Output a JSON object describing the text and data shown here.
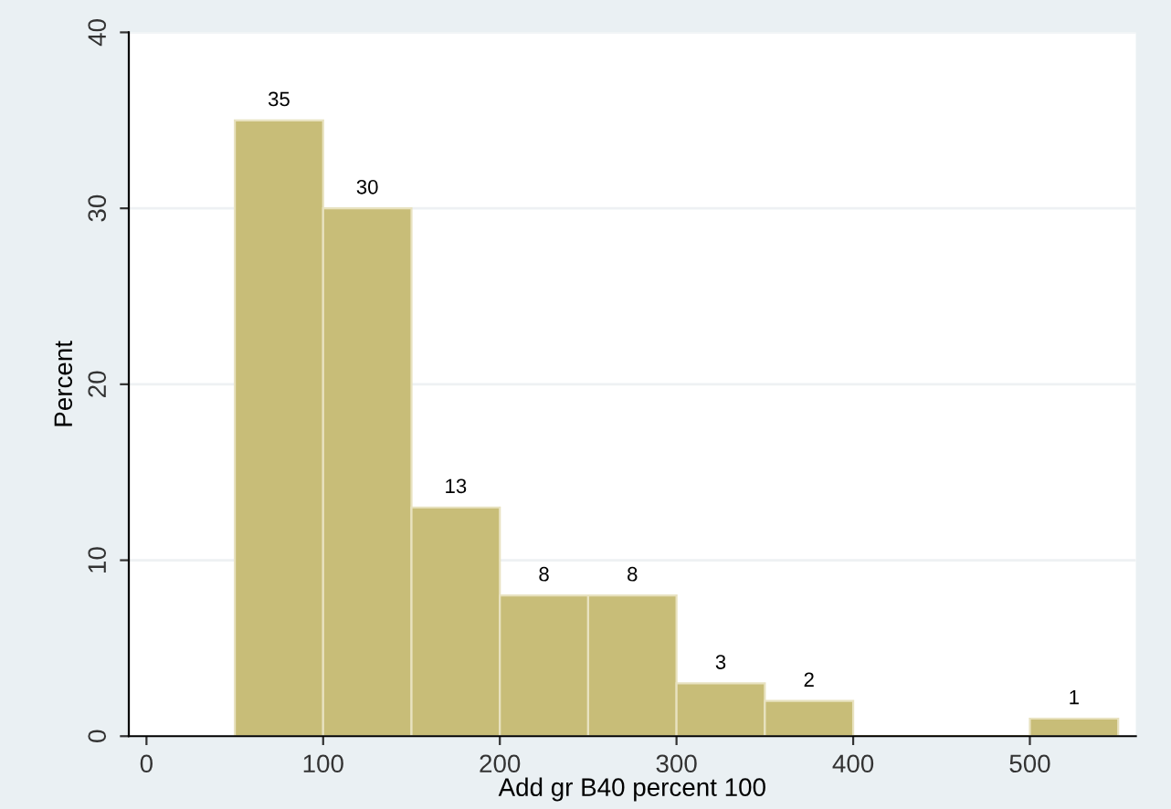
{
  "chart_data": {
    "type": "histogram",
    "xlabel": "Add gr B40 percent 100",
    "ylabel": "Percent",
    "bins": [
      50,
      100,
      150,
      200,
      250,
      300,
      350,
      400,
      450,
      500,
      550
    ],
    "values": [
      35,
      30,
      13,
      8,
      8,
      3,
      2,
      0,
      0,
      1
    ],
    "color": "#c8bd78",
    "value_labels": [
      "35",
      "30",
      "13",
      "8",
      "8",
      "3",
      "2",
      null,
      null,
      "1"
    ],
    "xlim": [
      -10,
      560
    ],
    "xticks": [
      0,
      100,
      200,
      300,
      400,
      500
    ],
    "ylim": [
      0,
      40
    ],
    "yticks": [
      0,
      10,
      20,
      30,
      40
    ],
    "grid": "y"
  }
}
